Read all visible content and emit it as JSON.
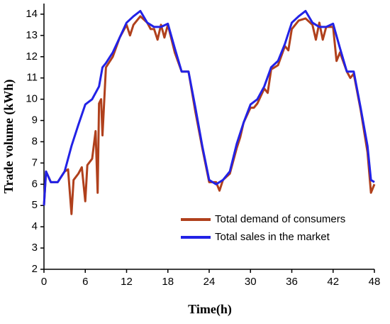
{
  "chart_data": {
    "type": "line",
    "xlabel": "Time(h)",
    "ylabel": "Trade volume (kWh)",
    "xlim": [
      0,
      48
    ],
    "xticks": [
      0,
      6,
      12,
      18,
      24,
      30,
      36,
      42,
      48
    ],
    "ylim": [
      2,
      14.5
    ],
    "yticks": [
      2,
      3,
      4,
      5,
      6,
      7,
      8,
      9,
      10,
      11,
      12,
      13,
      14
    ],
    "legend": "lower right",
    "series": [
      {
        "name": "Total demand of consumers",
        "color": "#b0401c",
        "x": [
          0,
          0.3,
          1,
          2,
          3,
          3.5,
          4,
          4.3,
          5,
          5.5,
          6,
          6.3,
          7,
          7.5,
          7.8,
          8,
          8.3,
          8.5,
          9,
          10,
          11,
          12,
          12.5,
          13,
          14,
          15,
          15.5,
          16,
          16.5,
          17,
          17.5,
          18,
          19,
          20,
          21,
          22,
          23,
          24,
          25,
          25.5,
          26,
          27,
          28,
          28.5,
          29,
          30,
          30.5,
          31,
          32,
          32.5,
          33,
          34,
          35,
          35.5,
          36,
          37,
          38,
          39,
          39.5,
          40,
          40.5,
          41,
          42,
          42.5,
          43,
          44,
          44.5,
          45,
          46,
          47,
          47.5,
          48
        ],
        "values": [
          5.0,
          6.6,
          6.1,
          6.1,
          6.6,
          6.7,
          4.6,
          6.2,
          6.5,
          6.8,
          5.2,
          6.9,
          7.2,
          8.5,
          5.6,
          9.8,
          10.0,
          8.3,
          11.5,
          12.0,
          12.9,
          13.5,
          13.0,
          13.5,
          13.9,
          13.6,
          13.3,
          13.3,
          12.8,
          13.5,
          12.9,
          13.5,
          12.2,
          11.3,
          11.3,
          9.4,
          7.7,
          6.1,
          6.1,
          5.7,
          6.2,
          6.5,
          7.7,
          8.2,
          8.9,
          9.6,
          9.6,
          9.8,
          10.5,
          10.3,
          11.4,
          11.6,
          12.5,
          12.3,
          13.3,
          13.7,
          13.8,
          13.5,
          12.8,
          13.6,
          12.8,
          13.4,
          13.4,
          11.8,
          12.2,
          11.3,
          11.0,
          11.2,
          9.5,
          7.5,
          5.6,
          6.0
        ]
      },
      {
        "name": "Total sales in the market",
        "color": "#2222e6",
        "x": [
          0,
          0.3,
          1,
          2,
          3,
          4,
          5,
          6,
          7,
          8,
          8.5,
          9,
          10,
          11,
          12,
          13,
          14,
          15,
          16,
          17,
          18,
          19,
          20,
          21,
          22,
          23,
          24,
          25,
          26,
          27,
          28,
          29,
          30,
          31,
          32,
          33,
          34,
          35,
          36,
          37,
          38,
          39,
          40,
          41,
          42,
          43,
          44,
          45,
          46,
          47,
          47.5,
          48
        ],
        "values": [
          5.0,
          6.6,
          6.1,
          6.1,
          6.6,
          7.8,
          8.8,
          9.75,
          10.0,
          10.6,
          11.5,
          11.7,
          12.2,
          12.9,
          13.6,
          13.9,
          14.15,
          13.6,
          13.4,
          13.4,
          13.55,
          12.4,
          11.3,
          11.3,
          9.6,
          7.8,
          6.2,
          6.0,
          6.2,
          6.6,
          7.9,
          8.9,
          9.75,
          10.0,
          10.6,
          11.5,
          11.8,
          12.6,
          13.6,
          13.9,
          14.15,
          13.6,
          13.4,
          13.4,
          13.55,
          12.4,
          11.3,
          11.3,
          9.6,
          7.8,
          6.2,
          6.1
        ]
      }
    ]
  }
}
